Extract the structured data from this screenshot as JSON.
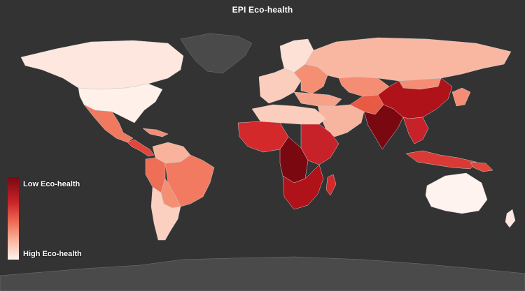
{
  "title": "EPI Eco-health",
  "legend": {
    "low_label": "Low Eco-health",
    "high_label": "High Eco-health",
    "color_low": "#7a0810",
    "color_high": "#fff3ef"
  },
  "colors": {
    "ocean": "#333333",
    "no_data_land": "#4a4a4a",
    "border": "#c9c9c9"
  }
}
